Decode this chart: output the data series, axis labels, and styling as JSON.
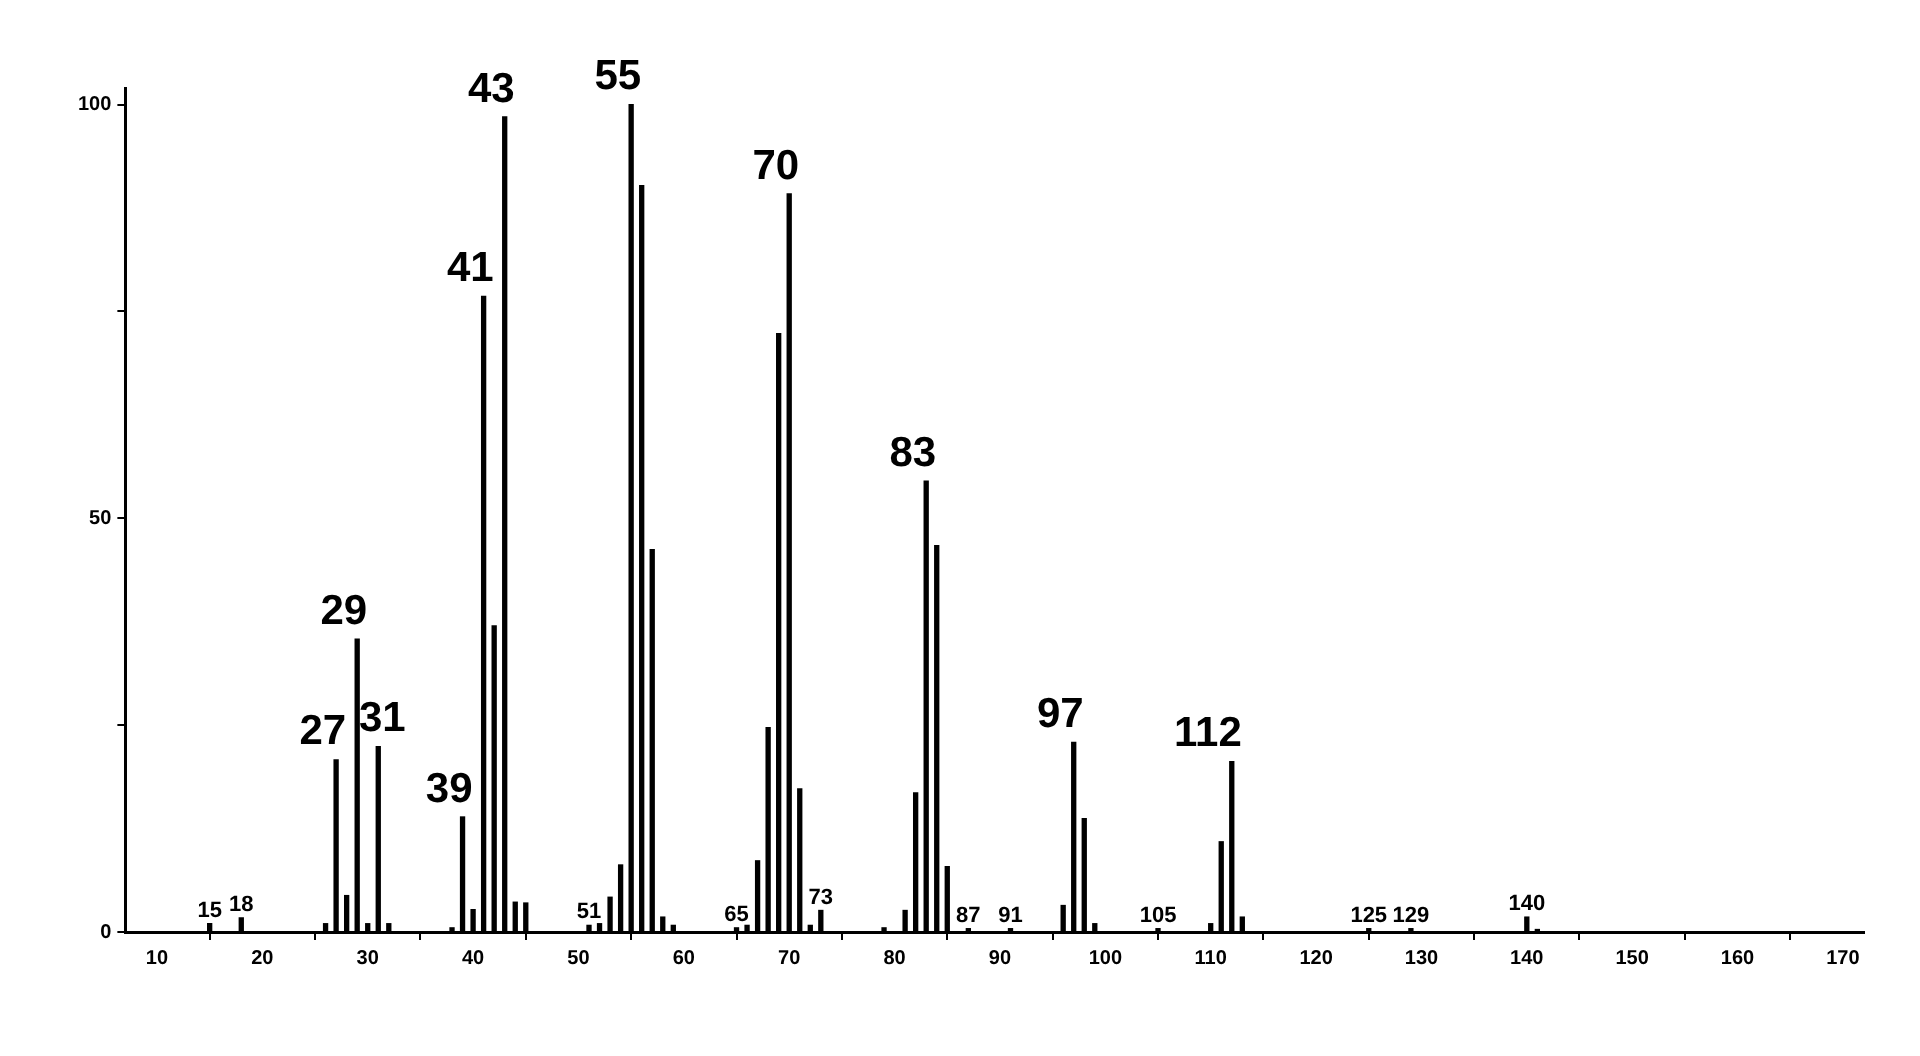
{
  "chart_data": {
    "type": "bar",
    "x": [
      15,
      18,
      26,
      27,
      28,
      29,
      30,
      31,
      32,
      38,
      39,
      40,
      41,
      42,
      43,
      44,
      45,
      51,
      52,
      53,
      54,
      55,
      56,
      57,
      58,
      59,
      65,
      66,
      67,
      68,
      69,
      70,
      71,
      72,
      73,
      79,
      81,
      82,
      83,
      84,
      85,
      87,
      91,
      96,
      97,
      98,
      99,
      105,
      110,
      111,
      112,
      113,
      125,
      129,
      140,
      141
    ],
    "series": [
      {
        "color": "#000000",
        "values": [
          1,
          1.7,
          1,
          20.8,
          4.4,
          35.4,
          1,
          22.4,
          1,
          0.5,
          13.9,
          2.7,
          76.8,
          37,
          98.5,
          3.6,
          3.5,
          0.8,
          1,
          4.2,
          8.1,
          100,
          90.2,
          46.2,
          1.8,
          0.8,
          0.5,
          0.8,
          8.6,
          24.7,
          72.3,
          89.2,
          17.3,
          0.8,
          2.6,
          0.5,
          2.6,
          16.8,
          54.5,
          46.7,
          7.9,
          0.4,
          0.4,
          3.2,
          22.9,
          13.7,
          1,
          0.4,
          1,
          10.9,
          20.6,
          1.8,
          0.4,
          0.4,
          1.8,
          0.3
        ]
      }
    ],
    "xlim": [
      7,
      172
    ],
    "xticks": [
      10,
      20,
      30,
      40,
      50,
      60,
      70,
      80,
      90,
      100,
      110,
      120,
      130,
      140,
      150,
      160,
      170
    ],
    "ylim": [
      0,
      102
    ],
    "yticks": [
      0,
      {
        "value": 25,
        "label": null
      },
      50,
      {
        "value": 75,
        "label": null
      },
      100
    ],
    "grid": false,
    "legend": false,
    "annotations": [
      {
        "text": "15",
        "x": 15,
        "y": 1
      },
      {
        "text": "18",
        "x": 18,
        "y": 1.7
      },
      {
        "text": "27",
        "x": 27,
        "y": 20.8
      },
      {
        "text": "29",
        "x": 29,
        "y": 35.4
      },
      {
        "text": "31",
        "x": 31,
        "y": 22.4
      },
      {
        "text": "39",
        "x": 39,
        "y": 13.9
      },
      {
        "text": "41",
        "x": 41,
        "y": 76.8
      },
      {
        "text": "43",
        "x": 43,
        "y": 98.5
      },
      {
        "text": "51",
        "x": 51,
        "y": 0.8
      },
      {
        "text": "55",
        "x": 55,
        "y": 100
      },
      {
        "text": "65",
        "x": 65,
        "y": 0.5
      },
      {
        "text": "70",
        "x": 70,
        "y": 89.2
      },
      {
        "text": "73",
        "x": 73,
        "y": 2.6
      },
      {
        "text": "83",
        "x": 83,
        "y": 54.5
      },
      {
        "text": "87",
        "x": 87,
        "y": 0.4
      },
      {
        "text": "91",
        "x": 91,
        "y": 0.4
      },
      {
        "text": "97",
        "x": 97,
        "y": 22.9
      },
      {
        "text": "105",
        "x": 105,
        "y": 0.4
      },
      {
        "text": "112",
        "x": 112,
        "y": 20.6
      },
      {
        "text": "125",
        "x": 125,
        "y": 0.4
      },
      {
        "text": "129",
        "x": 129,
        "y": 0.4
      },
      {
        "text": "140",
        "x": 140,
        "y": 1.8
      }
    ]
  }
}
